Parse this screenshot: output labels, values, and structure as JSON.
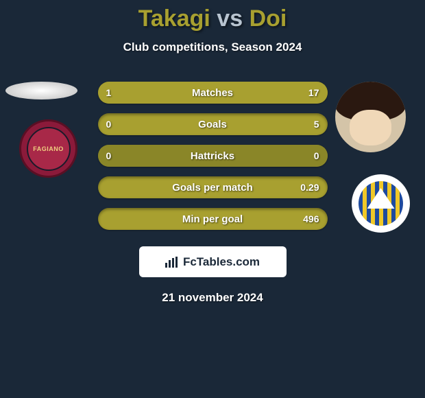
{
  "title": {
    "player1": "Takagi",
    "vs": "vs",
    "player2": "Doi"
  },
  "subtitle": "Club competitions, Season 2024",
  "player1_club": "FAGIANO",
  "stats": [
    {
      "label": "Matches",
      "left_val": "1",
      "right_val": "17",
      "left_pct": 5.6,
      "right_pct": 94.4,
      "bg": "#8a8628",
      "fill": "#a8a030"
    },
    {
      "label": "Goals",
      "left_val": "0",
      "right_val": "5",
      "left_pct": 0,
      "right_pct": 100,
      "bg": "#8a8628",
      "fill": "#a8a030"
    },
    {
      "label": "Hattricks",
      "left_val": "0",
      "right_val": "0",
      "left_pct": 50,
      "right_pct": 50,
      "bg": "#8a8628",
      "fill": "#8a8628"
    },
    {
      "label": "Goals per match",
      "left_val": "",
      "right_val": "0.29",
      "left_pct": 0,
      "right_pct": 100,
      "bg": "#8a8628",
      "fill": "#a8a030"
    },
    {
      "label": "Min per goal",
      "left_val": "",
      "right_val": "496",
      "left_pct": 0,
      "right_pct": 100,
      "bg": "#8a8628",
      "fill": "#a8a030"
    }
  ],
  "brand": "FcTables.com",
  "date": "21 november 2024",
  "colors": {
    "background": "#1a2838",
    "accent": "#a8a030",
    "bar_bg": "#8a8628",
    "text": "#ffffff",
    "club_left_bg": "#8b1a3a",
    "club_right_stripe1": "#1e4a9e",
    "club_right_stripe2": "#f0c828"
  }
}
